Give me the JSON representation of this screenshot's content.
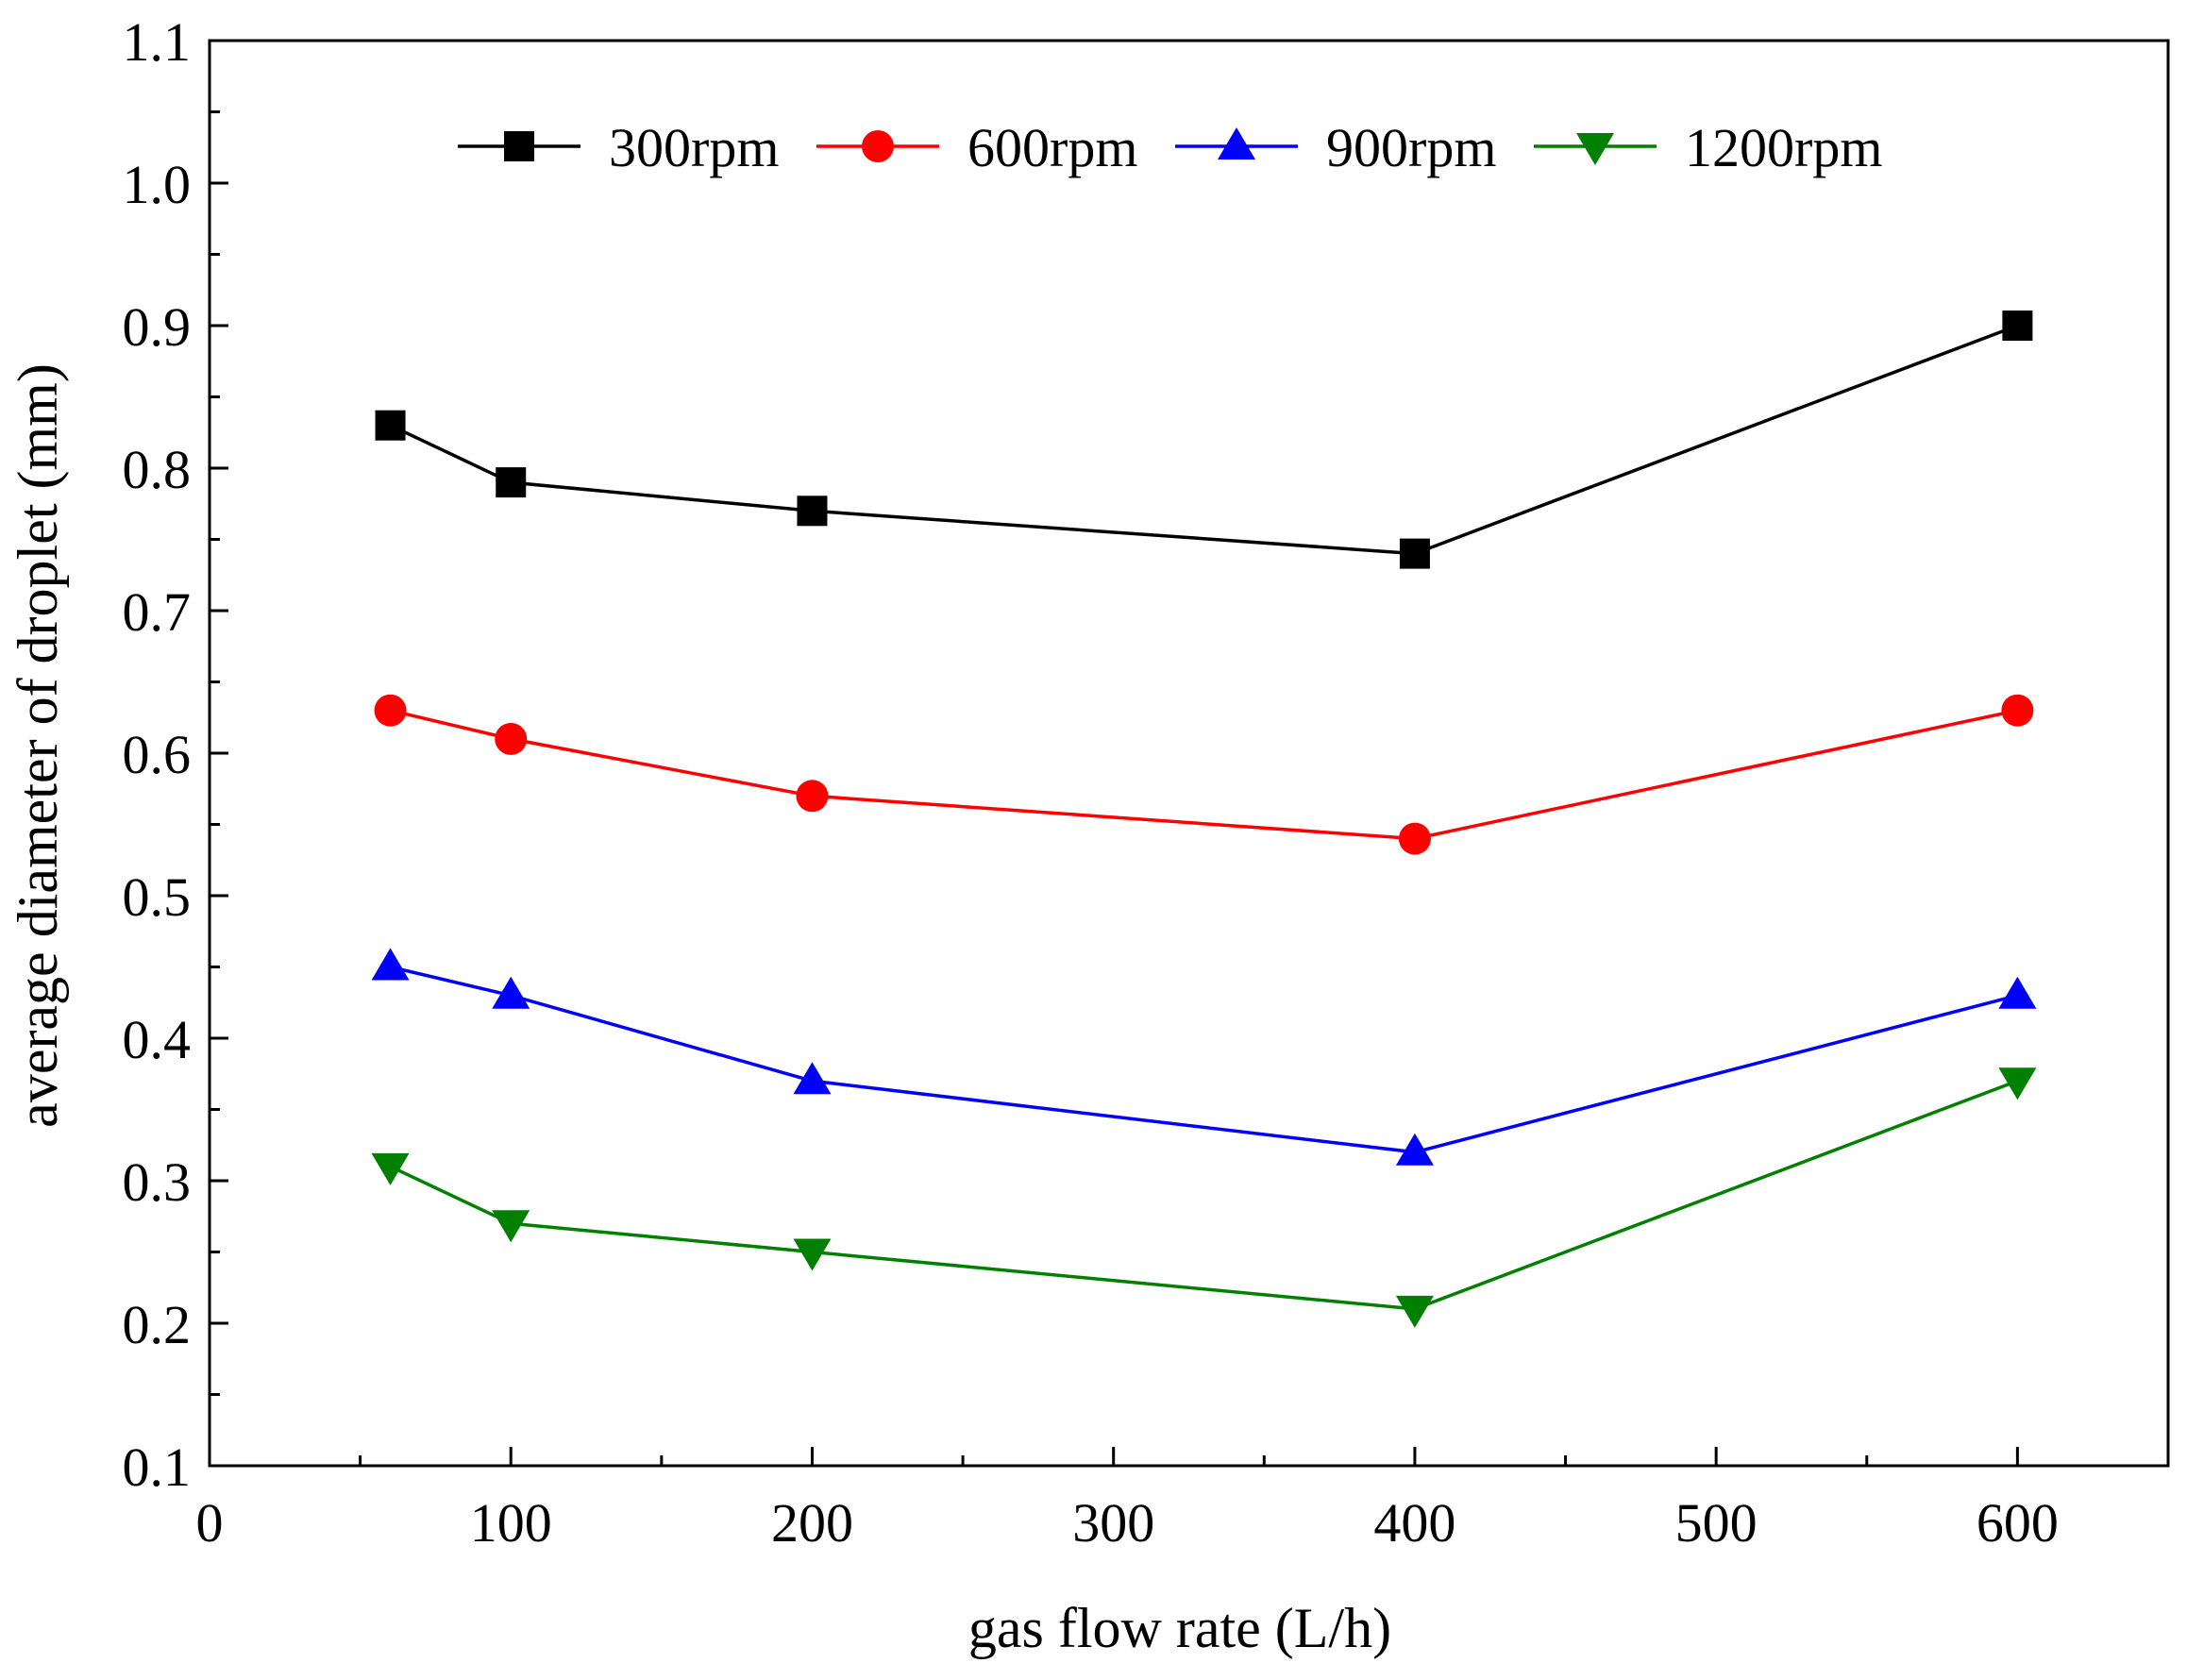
{
  "chart_data": {
    "type": "line",
    "title": "",
    "xlabel": "gas flow rate (L/h)",
    "ylabel": "average diameter of droplet (mm)",
    "xlim": [
      0,
      650
    ],
    "ylim": [
      0.1,
      1.1
    ],
    "xticks": [
      0,
      100,
      200,
      300,
      400,
      500,
      600
    ],
    "yticks": [
      0.1,
      0.2,
      0.3,
      0.4,
      0.5,
      0.6,
      0.7,
      0.8,
      0.9,
      1.0,
      1.1
    ],
    "xtick_labels": [
      "0",
      "100",
      "200",
      "300",
      "400",
      "500",
      "600"
    ],
    "ytick_labels": [
      "0.1",
      "0.2",
      "0.3",
      "0.4",
      "0.5",
      "0.6",
      "0.7",
      "0.8",
      "0.9",
      "1.0",
      "1.1"
    ],
    "grid": false,
    "legend_position": "top",
    "x": [
      60,
      100,
      200,
      400,
      600
    ],
    "series": [
      {
        "name": "300rpm",
        "color": "#000000",
        "marker": "square",
        "values": [
          0.83,
          0.79,
          0.77,
          0.74,
          0.9
        ]
      },
      {
        "name": "600rpm",
        "color": "#ff0000",
        "marker": "circle",
        "values": [
          0.63,
          0.61,
          0.57,
          0.54,
          0.63
        ]
      },
      {
        "name": "900rpm",
        "color": "#0000ff",
        "marker": "triangle-up",
        "values": [
          0.45,
          0.43,
          0.37,
          0.32,
          0.43
        ]
      },
      {
        "name": "1200rpm",
        "color": "#008000",
        "marker": "triangle-down",
        "values": [
          0.31,
          0.27,
          0.25,
          0.21,
          0.37
        ]
      }
    ]
  }
}
